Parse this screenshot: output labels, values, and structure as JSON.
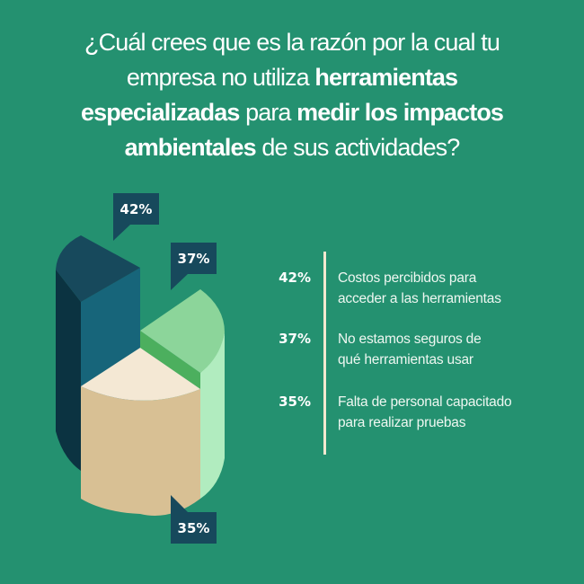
{
  "title": {
    "segments": [
      {
        "text": "¿Cuál crees que es la razón por la cual tu",
        "bold": false,
        "br": true
      },
      {
        "text": "empresa no utiliza ",
        "bold": false
      },
      {
        "text": "herramientas",
        "bold": true,
        "br": true
      },
      {
        "text": "especializadas",
        "bold": true
      },
      {
        "text": " para ",
        "bold": false
      },
      {
        "text": "medir los impactos",
        "bold": true,
        "br": true
      },
      {
        "text": "ambientales",
        "bold": true
      },
      {
        "text": " de sus actividades?",
        "bold": false
      }
    ]
  },
  "colors": {
    "background": "#249170",
    "callout": "#17495c",
    "divider": "#f3e8d0",
    "slice_42_top": "#17495c",
    "slice_42_front": "#17657a",
    "slice_42_side": "#0b3341",
    "slice_37_top": "#8cd59a",
    "slice_37_edge": "#4caf5e",
    "slice_37_side": "#b1ecbf",
    "slice_35_top": "#f4e8d4",
    "slice_35_front": "#d8c094"
  },
  "chart_data": {
    "type": "pie",
    "style": "3d-stacked-cylinder",
    "title": "¿Cuál crees que es la razón por la cual tu empresa no utiliza herramientas especializadas para medir los impactos ambientales de sus actividades?",
    "slices": [
      {
        "label": "Costos percibidos para acceder a las herramientas",
        "value": 42,
        "display": "42%"
      },
      {
        "label": "No estamos seguros de qué herramientas usar",
        "value": 37,
        "display": "37%"
      },
      {
        "label": "Falta de personal capacitado para realizar pruebas",
        "value": 35,
        "display": "35%"
      }
    ]
  },
  "legend": [
    {
      "pct": "42%",
      "lines": [
        "Costos percibidos para",
        "acceder a las herramientas"
      ]
    },
    {
      "pct": "37%",
      "lines": [
        "No estamos seguros de",
        "qué herramientas usar"
      ]
    },
    {
      "pct": "35%",
      "lines": [
        "Falta de personal capacitado",
        "para realizar pruebas"
      ]
    }
  ]
}
